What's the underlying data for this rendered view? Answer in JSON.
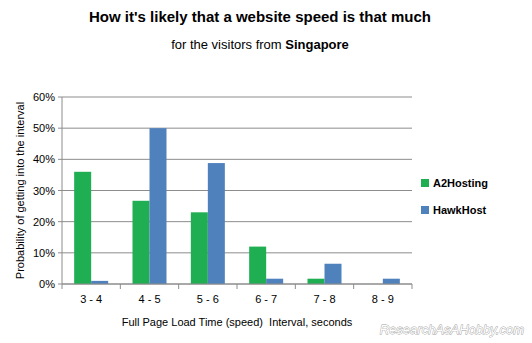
{
  "chart_data": {
    "type": "bar",
    "title": "How it's likely that a website speed is that much",
    "subtitle": "for the visitors from",
    "annotations": [
      "Singapore",
      "ResearchAsAHobby.com"
    ],
    "x_label": "Full Page Load Time (speed)  Interval, seconds",
    "y_label": "Probability of getting into the interval",
    "categories": [
      "3 - 4",
      "4 - 5",
      "5 - 6",
      "6 - 7",
      "7 - 8",
      "8 - 9"
    ],
    "series": [
      {
        "name": "A2Hosting",
        "color": "#1fae52",
        "values": [
          36,
          26.7,
          23,
          12,
          1.7,
          0
        ]
      },
      {
        "name": "HawkHost",
        "color": "#4f81bd",
        "values": [
          1,
          50,
          38.8,
          1.7,
          6.5,
          1.7
        ]
      }
    ],
    "ylim": [
      0,
      60
    ],
    "yticks": [
      {
        "value": 0,
        "label": "0%"
      },
      {
        "value": 10,
        "label": "10%"
      },
      {
        "value": 20,
        "label": "20%"
      },
      {
        "value": 30,
        "label": "30%"
      },
      {
        "value": 40,
        "label": "40%"
      },
      {
        "value": 50,
        "label": "50%"
      },
      {
        "value": 60,
        "label": "60%"
      }
    ],
    "grid": true,
    "legend": "right"
  }
}
